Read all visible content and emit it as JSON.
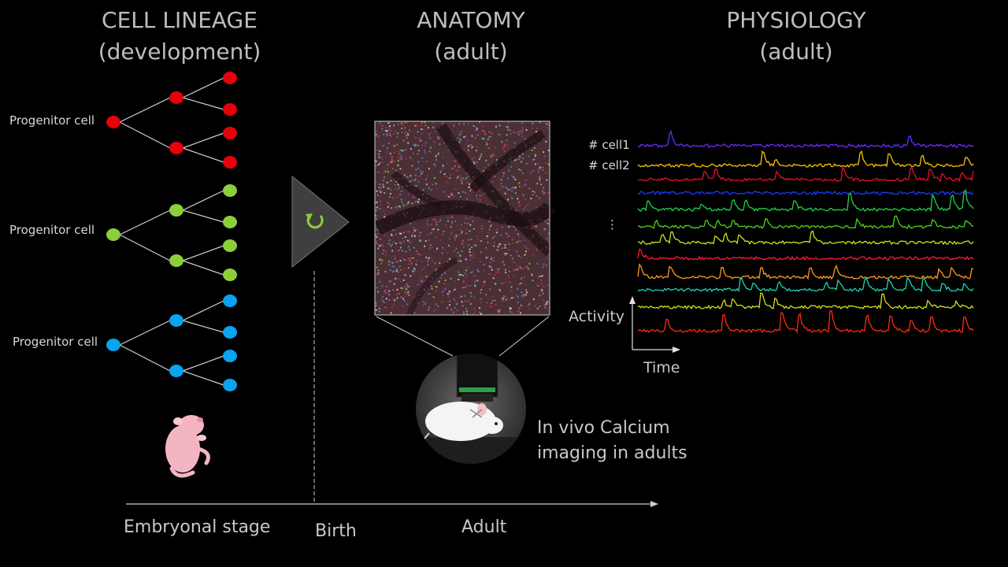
{
  "headers": {
    "lineage": {
      "line1": "CELL LINEAGE",
      "line2": "(development)"
    },
    "anatomy": {
      "line1": "ANATOMY",
      "line2": "(adult)"
    },
    "physiology": {
      "line1": "PHYSIOLOGY",
      "line2": "(adult)"
    }
  },
  "lineage": {
    "trees": [
      {
        "label": "Progenitor cell",
        "color": "#e8000b"
      },
      {
        "label": "Progenitor cell",
        "color": "#8ccf3a"
      },
      {
        "label": "Progenitor cell",
        "color": "#0aa3f0"
      }
    ]
  },
  "anatomy": {
    "caption_line1": "In vivo Calcium",
    "caption_line2": "imaging in adults"
  },
  "physiology": {
    "cell1_label": "# cell1",
    "cell2_label": "# cell2",
    "ellipsis": "⋮",
    "y_axis": "Activity",
    "x_axis": "Time",
    "trace_colors": [
      "#6a2cff",
      "#f5c400",
      "#e8102a",
      "#1a3cff",
      "#1fd24a",
      "#4dd61a",
      "#c8e61e",
      "#ff1a3c",
      "#ff9a1a",
      "#1ad6b4",
      "#d6e01a",
      "#ff2a10"
    ]
  },
  "timeline": {
    "embryonal": "Embryonal stage",
    "birth": "Birth",
    "adult": "Adult"
  },
  "icons": [
    "recycle-arrow-icon",
    "newborn-mouse-icon",
    "microscope-mouse-icon"
  ]
}
